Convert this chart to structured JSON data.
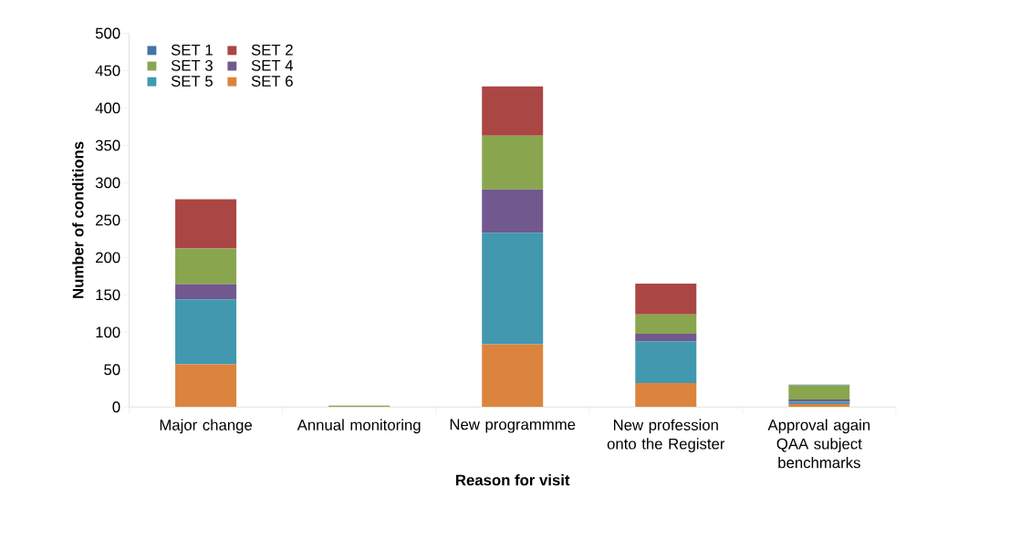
{
  "chart_data": {
    "type": "bar",
    "stacked": true,
    "xlabel": "Reason for visit",
    "ylabel": "Number of conditions",
    "categories": [
      "Major change",
      "Annual monitoring",
      "New programmme",
      "New profession onto the Register",
      "Approval again QAA subject benchmarks"
    ],
    "series": [
      {
        "name": "SET 6",
        "color": "#db843d",
        "values": [
          57,
          0,
          84,
          32,
          4
        ]
      },
      {
        "name": "SET 5",
        "color": "#4198af",
        "values": [
          87,
          0,
          149,
          56,
          3
        ]
      },
      {
        "name": "SET 4",
        "color": "#71588f",
        "values": [
          20,
          0,
          58,
          10,
          3
        ]
      },
      {
        "name": "SET 3",
        "color": "#89a54e",
        "values": [
          48,
          2,
          72,
          26,
          19
        ]
      },
      {
        "name": "SET 2",
        "color": "#aa4643",
        "values": [
          66,
          0,
          66,
          41,
          0
        ]
      },
      {
        "name": "SET 1",
        "color": "#4572a7",
        "values": [
          0,
          0,
          0,
          0,
          1
        ]
      }
    ],
    "ylim": [
      0,
      500
    ],
    "yticks": [
      0,
      50,
      100,
      150,
      200,
      250,
      300,
      350,
      400,
      450,
      500
    ],
    "grid": false,
    "legend": "top left"
  }
}
